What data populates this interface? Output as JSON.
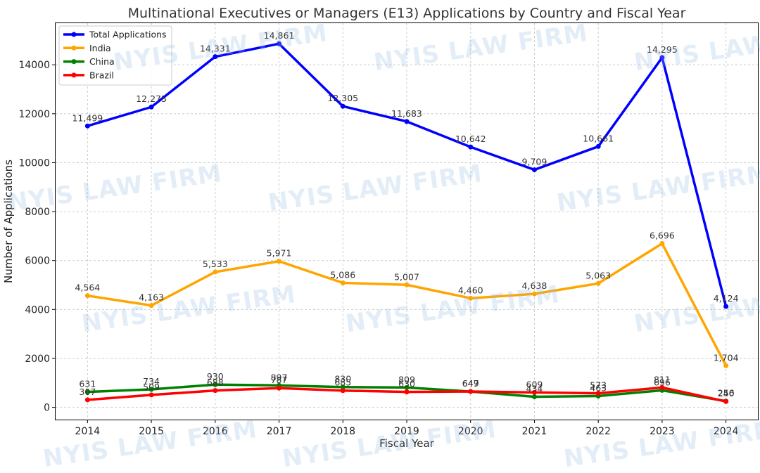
{
  "watermark_text": "NYIS LAW FIRM",
  "chart_data": {
    "type": "line",
    "title": "Multinational Executives or Managers (E13) Applications by Country and Fiscal Year",
    "xlabel": "Fiscal Year",
    "ylabel": "Number of Applications",
    "ylim": [
      -500,
      15700
    ],
    "xlim": [
      2013.5,
      2024.5
    ],
    "grid": true,
    "legend_position": "top-left",
    "x": [
      2014,
      2015,
      2016,
      2017,
      2018,
      2019,
      2020,
      2021,
      2022,
      2023,
      2024
    ],
    "x_tick_labels": [
      "2014",
      "2015",
      "2016",
      "2017",
      "2018",
      "2019",
      "2020",
      "2021",
      "2022",
      "2023",
      "2024"
    ],
    "y_ticks": [
      0,
      2000,
      4000,
      6000,
      8000,
      10000,
      12000,
      14000
    ],
    "y_tick_labels": [
      "0",
      "2000",
      "4000",
      "6000",
      "8000",
      "10000",
      "12000",
      "14000"
    ],
    "series": [
      {
        "name": "Total Applications",
        "color": "#0000ff",
        "values": [
          11499,
          12275,
          14331,
          14861,
          12305,
          11683,
          10642,
          9709,
          10661,
          14295,
          4124
        ],
        "labels": [
          "11,499",
          "12,275",
          "14,331",
          "14,861",
          "12,305",
          "11,683",
          "10,642",
          "9,709",
          "10,661",
          "14,295",
          "4,124"
        ]
      },
      {
        "name": "India",
        "color": "#ffa500",
        "values": [
          4564,
          4163,
          5533,
          5971,
          5086,
          5007,
          4460,
          4638,
          5063,
          6696,
          1704
        ],
        "labels": [
          "4,564",
          "4,163",
          "5,533",
          "5,971",
          "5,086",
          "5,007",
          "4,460",
          "4,638",
          "5,063",
          "6,696",
          "1,704"
        ]
      },
      {
        "name": "China",
        "color": "#008000",
        "values": [
          631,
          734,
          930,
          897,
          830,
          809,
          647,
          434,
          463,
          696,
          256
        ],
        "labels": [
          "631",
          "734",
          "930",
          "897",
          "830",
          "809",
          "647",
          "434",
          "463",
          "696",
          "256"
        ]
      },
      {
        "name": "Brazil",
        "color": "#ff0000",
        "values": [
          307,
          509,
          688,
          787,
          685,
          630,
          649,
          609,
          573,
          811,
          240
        ],
        "labels": [
          "307",
          "509",
          "688",
          "787",
          "685",
          "630",
          "649",
          "609",
          "573",
          "811",
          "240"
        ]
      }
    ]
  }
}
